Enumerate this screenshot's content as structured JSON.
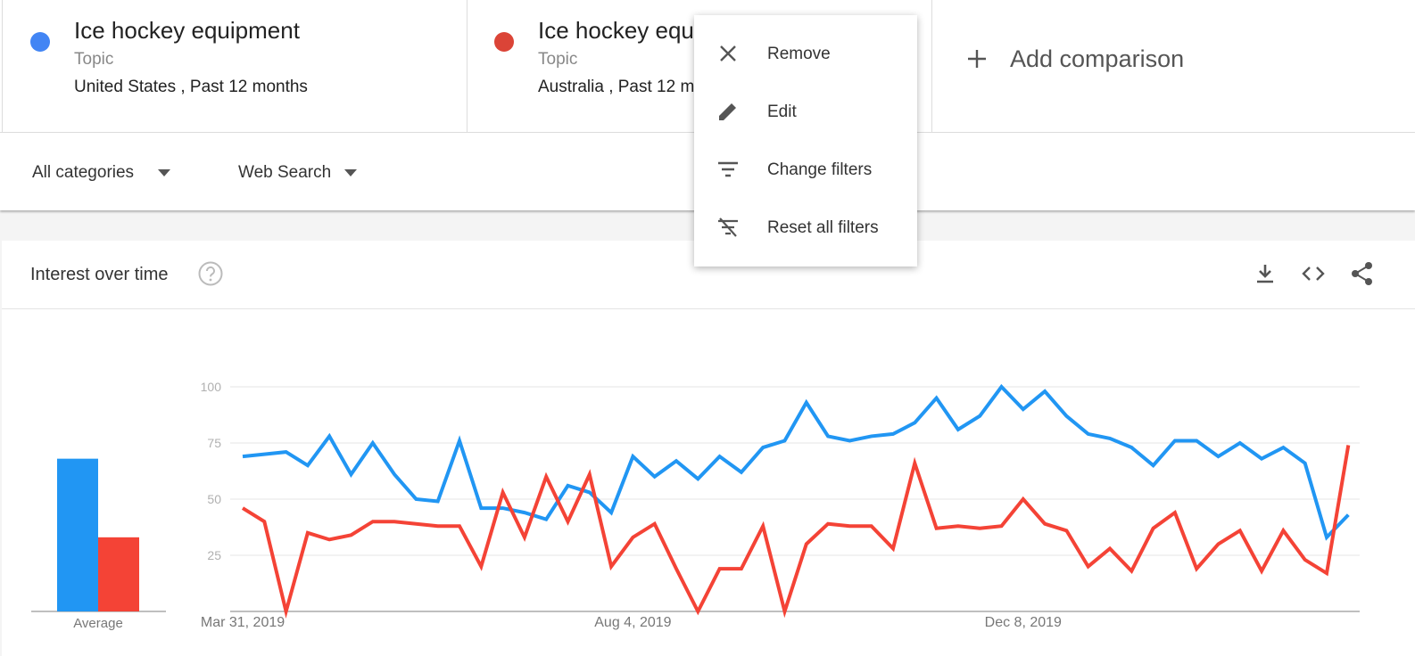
{
  "comparisons": [
    {
      "kind": "Topic",
      "scope": "United States , Past 12 months"
    },
    {
      "kind": "Topic",
      "scope": "Australia , Past 12 months"
    }
  ],
  "add_comparison": "Add comparison",
  "filters": {
    "category": "All categories",
    "property": "Web Search"
  },
  "card": {
    "title": "Interest over time"
  },
  "menu": [
    "Remove",
    "Edit",
    "Change filters",
    "Reset all filters"
  ],
  "chart_data": {
    "type": "line",
    "categories": [
      "Mar 31, 2019",
      null,
      null,
      null,
      null,
      null,
      null,
      null,
      null,
      null,
      null,
      null,
      null,
      null,
      null,
      null,
      null,
      null,
      "Aug 4, 2019",
      null,
      null,
      null,
      null,
      null,
      null,
      null,
      null,
      null,
      null,
      null,
      null,
      null,
      null,
      null,
      null,
      null,
      "Dec 8, 2019",
      null,
      null,
      null,
      null,
      null,
      null,
      null,
      null,
      null,
      null,
      null,
      null,
      null,
      null,
      null
    ],
    "series": [
      {
        "name": "Ice hockey equipment",
        "color": "#2196f3",
        "average": 68,
        "values": [
          69,
          70,
          71,
          65,
          78,
          61,
          75,
          61,
          50,
          49,
          76,
          46,
          46,
          44,
          41,
          56,
          53,
          44,
          69,
          60,
          67,
          59,
          69,
          62,
          73,
          76,
          93,
          78,
          76,
          78,
          79,
          84,
          95,
          81,
          87,
          100,
          90,
          98,
          87,
          79,
          77,
          73,
          65,
          76,
          76,
          69,
          75,
          68,
          73,
          66,
          33,
          43
        ]
      },
      {
        "name": "Ice hockey equipment",
        "color": "#f44336",
        "average": 33,
        "values": [
          46,
          40,
          0,
          35,
          32,
          34,
          40,
          40,
          39,
          38,
          38,
          20,
          53,
          33,
          60,
          40,
          61,
          20,
          33,
          39,
          19,
          0,
          19,
          19,
          38,
          0,
          30,
          39,
          38,
          38,
          28,
          66,
          37,
          38,
          37,
          38,
          50,
          39,
          36,
          20,
          28,
          18,
          37,
          44,
          19,
          30,
          36,
          18,
          36,
          23,
          17,
          74
        ]
      }
    ],
    "average_label": "Average",
    "ylim": [
      0,
      100
    ],
    "yticks": [
      25,
      50,
      75,
      100
    ],
    "grid": true
  }
}
